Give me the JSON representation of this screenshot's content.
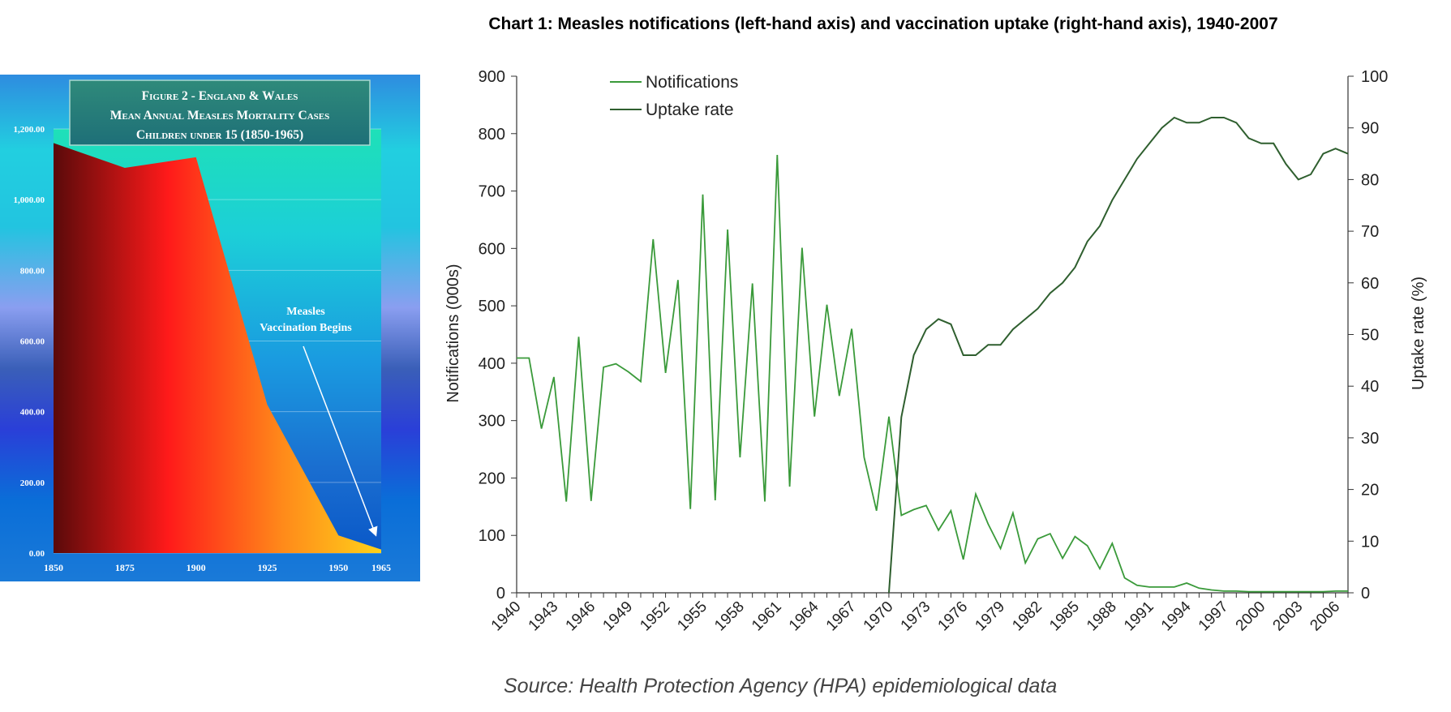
{
  "chart_data": [
    {
      "type": "area",
      "title_lines": [
        "Figure 2 - England & Wales",
        "Mean Annual Measles Mortality Cases",
        "Children under 15 (1850-1965)"
      ],
      "annotation": [
        "Measles",
        "Vaccination Begins"
      ],
      "x": [
        1850,
        1875,
        1900,
        1925,
        1950,
        1965
      ],
      "xticks": [
        "1850",
        "1875",
        "1900",
        "1925",
        "1950",
        "1965"
      ],
      "values": [
        1160,
        1090,
        1120,
        420,
        50,
        10
      ],
      "yticks": [
        "0.00",
        "200.00",
        "400.00",
        "600.00",
        "800.00",
        "1,000.00",
        "1,200.00"
      ],
      "ylim": [
        0,
        1200
      ],
      "xlim": [
        1850,
        1965
      ],
      "grid": true
    },
    {
      "type": "line",
      "title": "Chart 1: Measles notifications (left-hand axis) and vaccination uptake (right-hand axis), 1940-2007",
      "source": "Source: Health Protection Agency (HPA) epidemiological data",
      "xlim": [
        1940,
        2007
      ],
      "xticks": [
        "1940",
        "1943",
        "1946",
        "1949",
        "1952",
        "1955",
        "1958",
        "1961",
        "1964",
        "1967",
        "1970",
        "1973",
        "1976",
        "1979",
        "1982",
        "1985",
        "1988",
        "1991",
        "1994",
        "1997",
        "2000",
        "2003",
        "2006"
      ],
      "ylabel_left": "Notifications (000s)",
      "ylabel_right": "Uptake rate (%)",
      "yticks_left": [
        "0",
        "100",
        "200",
        "300",
        "400",
        "500",
        "600",
        "700",
        "800",
        "900"
      ],
      "yticks_right": [
        "0",
        "10",
        "20",
        "30",
        "40",
        "50",
        "60",
        "70",
        "80",
        "90",
        "100"
      ],
      "ylim_left": [
        0,
        900
      ],
      "ylim_right": [
        0,
        100
      ],
      "legend": {
        "placement": "top-left",
        "entries": [
          "Notifications",
          "Uptake rate"
        ]
      },
      "series": [
        {
          "name": "Notifications",
          "axis": "left",
          "color": "#3a9a3a",
          "x": [
            1940,
            1941,
            1942,
            1943,
            1944,
            1945,
            1946,
            1947,
            1948,
            1949,
            1950,
            1951,
            1952,
            1953,
            1954,
            1955,
            1956,
            1957,
            1958,
            1959,
            1960,
            1961,
            1962,
            1963,
            1964,
            1965,
            1966,
            1967,
            1968,
            1969,
            1970,
            1971,
            1972,
            1973,
            1974,
            1975,
            1976,
            1977,
            1978,
            1979,
            1980,
            1981,
            1982,
            1983,
            1984,
            1985,
            1986,
            1987,
            1988,
            1989,
            1990,
            1991,
            1992,
            1993,
            1994,
            1995,
            1996,
            1997,
            1998,
            1999,
            2000,
            2001,
            2002,
            2003,
            2004,
            2005,
            2006,
            2007
          ],
          "values": [
            409,
            409,
            286,
            376,
            159,
            446,
            160,
            393,
            399,
            385,
            368,
            616,
            383,
            545,
            146,
            694,
            161,
            633,
            236,
            539,
            159,
            763,
            185,
            601,
            307,
            502,
            343,
            460,
            236,
            143,
            307,
            135,
            145,
            152,
            109,
            143,
            58,
            172,
            120,
            77,
            139,
            52,
            94,
            103,
            60,
            98,
            82,
            42,
            86,
            26,
            13,
            10,
            10,
            10,
            17,
            8,
            5,
            3,
            3,
            2,
            2,
            2,
            2,
            2,
            2,
            2,
            3,
            3
          ]
        },
        {
          "name": "Uptake rate",
          "axis": "right",
          "color": "#2f5f2f",
          "x": [
            1970,
            1971,
            1972,
            1973,
            1974,
            1975,
            1976,
            1977,
            1978,
            1979,
            1980,
            1981,
            1982,
            1983,
            1984,
            1985,
            1986,
            1987,
            1988,
            1989,
            1990,
            1991,
            1992,
            1993,
            1994,
            1995,
            1996,
            1997,
            1998,
            1999,
            2000,
            2001,
            2002,
            2003,
            2004,
            2005,
            2006,
            2007
          ],
          "values": [
            0,
            34,
            46,
            51,
            53,
            52,
            46,
            46,
            48,
            48,
            51,
            53,
            55,
            58,
            60,
            63,
            68,
            71,
            76,
            80,
            84,
            87,
            90,
            92,
            91,
            91,
            92,
            92,
            91,
            88,
            87,
            87,
            83,
            80,
            81,
            85,
            86,
            85
          ]
        }
      ]
    }
  ]
}
